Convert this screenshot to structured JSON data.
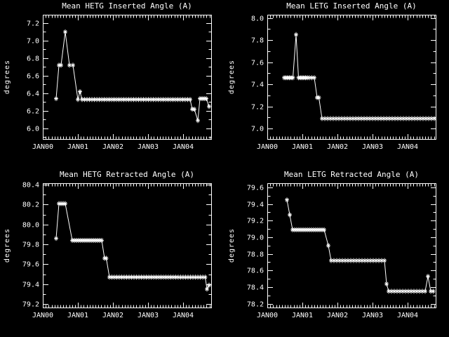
{
  "page": {
    "background": "#000000",
    "foreground": "#ffffff"
  },
  "chart_data": [
    {
      "type": "line",
      "title": "Mean HETG Inserted Angle (A)",
      "ylabel": "degrees",
      "xlabel": "",
      "legend": null,
      "grid": false,
      "marker": "asterisk",
      "line_color": "#ffffff",
      "xlim": [
        0,
        4.8
      ],
      "ylim": [
        5.88,
        7.295
      ],
      "xticks": [
        0,
        1,
        2,
        3,
        4
      ],
      "xtick_labels": [
        "JAN00",
        "JAN01",
        "JAN02",
        "JAN03",
        "JAN04"
      ],
      "x_minor_per_major": 12,
      "yticks": [
        6.0,
        6.2,
        6.4,
        6.6,
        6.8,
        7.0,
        7.2
      ],
      "y_minor_per_major": 2,
      "points": [
        [
          0.38,
          6.34
        ],
        [
          0.46,
          6.72
        ],
        [
          0.52,
          6.72
        ],
        [
          0.64,
          7.1
        ],
        [
          0.76,
          6.72
        ],
        [
          0.86,
          6.72
        ],
        [
          1.0,
          6.33
        ],
        [
          1.06,
          6.42
        ],
        [
          1.12,
          6.33
        ],
        [
          1.19,
          6.33
        ],
        [
          1.26,
          6.33
        ],
        [
          1.33,
          6.33
        ],
        [
          1.4,
          6.33
        ],
        [
          1.47,
          6.33
        ],
        [
          1.54,
          6.33
        ],
        [
          1.61,
          6.33
        ],
        [
          1.68,
          6.33
        ],
        [
          1.75,
          6.33
        ],
        [
          1.82,
          6.33
        ],
        [
          1.89,
          6.33
        ],
        [
          1.96,
          6.33
        ],
        [
          2.03,
          6.33
        ],
        [
          2.1,
          6.33
        ],
        [
          2.17,
          6.33
        ],
        [
          2.24,
          6.33
        ],
        [
          2.31,
          6.33
        ],
        [
          2.38,
          6.33
        ],
        [
          2.45,
          6.33
        ],
        [
          2.52,
          6.33
        ],
        [
          2.59,
          6.33
        ],
        [
          2.66,
          6.33
        ],
        [
          2.73,
          6.33
        ],
        [
          2.8,
          6.33
        ],
        [
          2.87,
          6.33
        ],
        [
          2.94,
          6.33
        ],
        [
          3.01,
          6.33
        ],
        [
          3.08,
          6.33
        ],
        [
          3.15,
          6.33
        ],
        [
          3.22,
          6.33
        ],
        [
          3.29,
          6.33
        ],
        [
          3.36,
          6.33
        ],
        [
          3.43,
          6.33
        ],
        [
          3.5,
          6.33
        ],
        [
          3.57,
          6.33
        ],
        [
          3.64,
          6.33
        ],
        [
          3.71,
          6.33
        ],
        [
          3.78,
          6.33
        ],
        [
          3.85,
          6.33
        ],
        [
          3.92,
          6.33
        ],
        [
          3.99,
          6.33
        ],
        [
          4.06,
          6.33
        ],
        [
          4.13,
          6.33
        ],
        [
          4.2,
          6.33
        ],
        [
          4.26,
          6.22
        ],
        [
          4.32,
          6.22
        ],
        [
          4.42,
          6.09
        ],
        [
          4.48,
          6.34
        ],
        [
          4.54,
          6.34
        ],
        [
          4.6,
          6.34
        ],
        [
          4.66,
          6.34
        ],
        [
          4.74,
          6.25
        ]
      ]
    },
    {
      "type": "line",
      "title": "Mean LETG Inserted Angle (A)",
      "ylabel": "degrees",
      "xlabel": "",
      "legend": null,
      "grid": false,
      "marker": "asterisk",
      "line_color": "#ffffff",
      "xlim": [
        0,
        4.8
      ],
      "ylim": [
        6.905,
        8.03
      ],
      "xticks": [
        0,
        1,
        2,
        3,
        4
      ],
      "xtick_labels": [
        "JAN00",
        "JAN01",
        "JAN02",
        "JAN03",
        "JAN04"
      ],
      "x_minor_per_major": 12,
      "yticks": [
        7.0,
        7.2,
        7.4,
        7.6,
        7.8,
        8.0
      ],
      "y_minor_per_major": 2,
      "points": [
        [
          0.48,
          7.46
        ],
        [
          0.53,
          7.46
        ],
        [
          0.58,
          7.46
        ],
        [
          0.63,
          7.46
        ],
        [
          0.68,
          7.46
        ],
        [
          0.73,
          7.46
        ],
        [
          0.82,
          7.85
        ],
        [
          0.89,
          7.46
        ],
        [
          0.94,
          7.46
        ],
        [
          0.99,
          7.46
        ],
        [
          1.04,
          7.46
        ],
        [
          1.09,
          7.46
        ],
        [
          1.14,
          7.46
        ],
        [
          1.2,
          7.46
        ],
        [
          1.27,
          7.46
        ],
        [
          1.34,
          7.46
        ],
        [
          1.42,
          7.28
        ],
        [
          1.47,
          7.28
        ],
        [
          1.56,
          7.09
        ],
        [
          1.64,
          7.09
        ],
        [
          1.72,
          7.09
        ],
        [
          1.8,
          7.09
        ],
        [
          1.88,
          7.09
        ],
        [
          1.96,
          7.09
        ],
        [
          2.04,
          7.09
        ],
        [
          2.12,
          7.09
        ],
        [
          2.2,
          7.09
        ],
        [
          2.28,
          7.09
        ],
        [
          2.36,
          7.09
        ],
        [
          2.44,
          7.09
        ],
        [
          2.52,
          7.09
        ],
        [
          2.6,
          7.09
        ],
        [
          2.68,
          7.09
        ],
        [
          2.76,
          7.09
        ],
        [
          2.84,
          7.09
        ],
        [
          2.92,
          7.09
        ],
        [
          3.0,
          7.09
        ],
        [
          3.08,
          7.09
        ],
        [
          3.16,
          7.09
        ],
        [
          3.24,
          7.09
        ],
        [
          3.32,
          7.09
        ],
        [
          3.4,
          7.09
        ],
        [
          3.48,
          7.09
        ],
        [
          3.56,
          7.09
        ],
        [
          3.64,
          7.09
        ],
        [
          3.72,
          7.09
        ],
        [
          3.8,
          7.09
        ],
        [
          3.88,
          7.09
        ],
        [
          3.96,
          7.09
        ],
        [
          4.04,
          7.09
        ],
        [
          4.12,
          7.09
        ],
        [
          4.2,
          7.09
        ],
        [
          4.28,
          7.09
        ],
        [
          4.36,
          7.09
        ],
        [
          4.44,
          7.09
        ],
        [
          4.52,
          7.09
        ],
        [
          4.6,
          7.09
        ],
        [
          4.68,
          7.09
        ],
        [
          4.76,
          7.09
        ]
      ]
    },
    {
      "type": "line",
      "title": "Mean HETG Retracted Angle (A)",
      "ylabel": "degrees",
      "xlabel": "",
      "legend": null,
      "grid": false,
      "marker": "asterisk",
      "line_color": "#ffffff",
      "xlim": [
        0,
        4.8
      ],
      "ylim": [
        79.165,
        80.415
      ],
      "xticks": [
        0,
        1,
        2,
        3,
        4
      ],
      "xtick_labels": [
        "JAN00",
        "JAN01",
        "JAN02",
        "JAN03",
        "JAN04"
      ],
      "x_minor_per_major": 12,
      "yticks": [
        79.2,
        79.4,
        79.6,
        79.8,
        80.0,
        80.2,
        80.4
      ],
      "y_minor_per_major": 2,
      "points": [
        [
          0.38,
          79.86
        ],
        [
          0.46,
          80.21
        ],
        [
          0.52,
          80.21
        ],
        [
          0.58,
          80.21
        ],
        [
          0.64,
          80.21
        ],
        [
          0.84,
          79.84
        ],
        [
          0.9,
          79.84
        ],
        [
          0.96,
          79.84
        ],
        [
          1.02,
          79.84
        ],
        [
          1.08,
          79.84
        ],
        [
          1.14,
          79.84
        ],
        [
          1.2,
          79.84
        ],
        [
          1.26,
          79.84
        ],
        [
          1.32,
          79.84
        ],
        [
          1.38,
          79.84
        ],
        [
          1.44,
          79.84
        ],
        [
          1.5,
          79.84
        ],
        [
          1.56,
          79.84
        ],
        [
          1.62,
          79.84
        ],
        [
          1.68,
          79.84
        ],
        [
          1.76,
          79.66
        ],
        [
          1.81,
          79.66
        ],
        [
          1.9,
          79.47
        ],
        [
          1.97,
          79.47
        ],
        [
          2.04,
          79.47
        ],
        [
          2.11,
          79.47
        ],
        [
          2.18,
          79.47
        ],
        [
          2.25,
          79.47
        ],
        [
          2.32,
          79.47
        ],
        [
          2.39,
          79.47
        ],
        [
          2.46,
          79.47
        ],
        [
          2.53,
          79.47
        ],
        [
          2.6,
          79.47
        ],
        [
          2.67,
          79.47
        ],
        [
          2.74,
          79.47
        ],
        [
          2.81,
          79.47
        ],
        [
          2.88,
          79.47
        ],
        [
          2.95,
          79.47
        ],
        [
          3.02,
          79.47
        ],
        [
          3.09,
          79.47
        ],
        [
          3.16,
          79.47
        ],
        [
          3.23,
          79.47
        ],
        [
          3.3,
          79.47
        ],
        [
          3.37,
          79.47
        ],
        [
          3.44,
          79.47
        ],
        [
          3.51,
          79.47
        ],
        [
          3.58,
          79.47
        ],
        [
          3.65,
          79.47
        ],
        [
          3.72,
          79.47
        ],
        [
          3.79,
          79.47
        ],
        [
          3.86,
          79.47
        ],
        [
          3.93,
          79.47
        ],
        [
          4.0,
          79.47
        ],
        [
          4.07,
          79.47
        ],
        [
          4.14,
          79.47
        ],
        [
          4.21,
          79.47
        ],
        [
          4.28,
          79.47
        ],
        [
          4.35,
          79.47
        ],
        [
          4.42,
          79.47
        ],
        [
          4.49,
          79.47
        ],
        [
          4.56,
          79.47
        ],
        [
          4.63,
          79.47
        ],
        [
          4.68,
          79.35
        ],
        [
          4.74,
          79.39
        ]
      ]
    },
    {
      "type": "line",
      "title": "Mean LETG Retracted Angle (A)",
      "ylabel": "degrees",
      "xlabel": "",
      "legend": null,
      "grid": false,
      "marker": "asterisk",
      "line_color": "#ffffff",
      "xlim": [
        0,
        4.8
      ],
      "ylim": [
        78.155,
        79.65
      ],
      "xticks": [
        0,
        1,
        2,
        3,
        4
      ],
      "xtick_labels": [
        "JAN00",
        "JAN01",
        "JAN02",
        "JAN03",
        "JAN04"
      ],
      "x_minor_per_major": 12,
      "yticks": [
        78.2,
        78.4,
        78.6,
        78.8,
        79.0,
        79.2,
        79.4,
        79.6
      ],
      "y_minor_per_major": 2,
      "points": [
        [
          0.56,
          79.45
        ],
        [
          0.64,
          79.27
        ],
        [
          0.72,
          79.09
        ],
        [
          0.78,
          79.09
        ],
        [
          0.84,
          79.09
        ],
        [
          0.9,
          79.09
        ],
        [
          0.96,
          79.09
        ],
        [
          1.02,
          79.09
        ],
        [
          1.08,
          79.09
        ],
        [
          1.14,
          79.09
        ],
        [
          1.2,
          79.09
        ],
        [
          1.26,
          79.09
        ],
        [
          1.32,
          79.09
        ],
        [
          1.38,
          79.09
        ],
        [
          1.44,
          79.09
        ],
        [
          1.5,
          79.09
        ],
        [
          1.56,
          79.09
        ],
        [
          1.62,
          79.09
        ],
        [
          1.74,
          78.9
        ],
        [
          1.82,
          78.72
        ],
        [
          1.9,
          78.72
        ],
        [
          1.98,
          78.72
        ],
        [
          2.06,
          78.72
        ],
        [
          2.14,
          78.72
        ],
        [
          2.22,
          78.72
        ],
        [
          2.3,
          78.72
        ],
        [
          2.38,
          78.72
        ],
        [
          2.46,
          78.72
        ],
        [
          2.54,
          78.72
        ],
        [
          2.62,
          78.72
        ],
        [
          2.7,
          78.72
        ],
        [
          2.78,
          78.72
        ],
        [
          2.86,
          78.72
        ],
        [
          2.94,
          78.72
        ],
        [
          3.02,
          78.72
        ],
        [
          3.1,
          78.72
        ],
        [
          3.18,
          78.72
        ],
        [
          3.26,
          78.72
        ],
        [
          3.34,
          78.72
        ],
        [
          3.4,
          78.44
        ],
        [
          3.46,
          78.35
        ],
        [
          3.54,
          78.35
        ],
        [
          3.62,
          78.35
        ],
        [
          3.7,
          78.35
        ],
        [
          3.78,
          78.35
        ],
        [
          3.86,
          78.35
        ],
        [
          3.94,
          78.35
        ],
        [
          4.02,
          78.35
        ],
        [
          4.1,
          78.35
        ],
        [
          4.18,
          78.35
        ],
        [
          4.26,
          78.35
        ],
        [
          4.34,
          78.35
        ],
        [
          4.42,
          78.35
        ],
        [
          4.5,
          78.35
        ],
        [
          4.58,
          78.53
        ],
        [
          4.66,
          78.35
        ],
        [
          4.73,
          78.35
        ]
      ]
    }
  ]
}
